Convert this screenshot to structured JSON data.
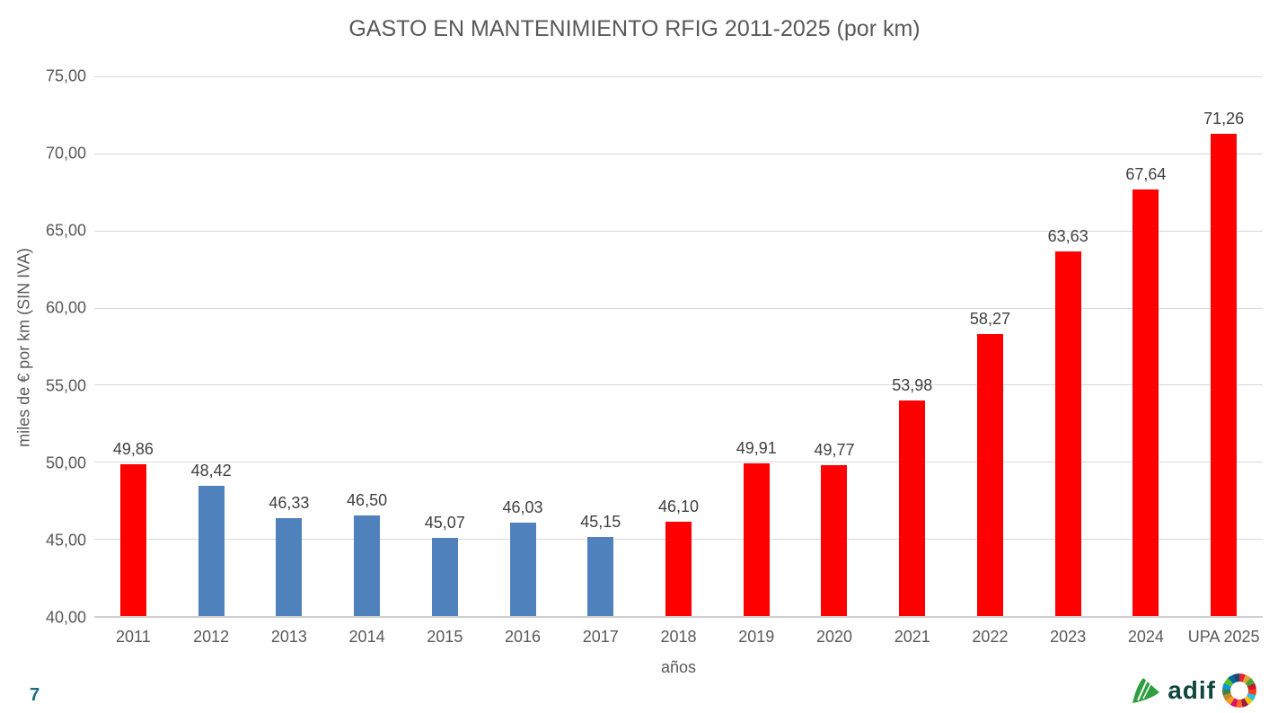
{
  "chart_data": {
    "type": "bar",
    "title": "GASTO EN MANTENIMIENTO RFIG 2011-2025 (por km)",
    "xlabel": "años",
    "ylabel": "miles de € por km (SIN IVA)",
    "ylim": [
      40,
      75
    ],
    "grid": true,
    "legend_position": "none",
    "categories": [
      "2011",
      "2012",
      "2013",
      "2014",
      "2015",
      "2016",
      "2017",
      "2018",
      "2019",
      "2020",
      "2021",
      "2022",
      "2023",
      "2024",
      "UPA 2025"
    ],
    "values": [
      49.86,
      48.42,
      46.33,
      46.5,
      45.07,
      46.03,
      45.15,
      46.1,
      49.91,
      49.77,
      53.98,
      58.27,
      63.63,
      67.64,
      71.26
    ],
    "value_labels": [
      "49,86",
      "48,42",
      "46,33",
      "46,50",
      "45,07",
      "46,03",
      "45,15",
      "46,10",
      "49,91",
      "49,77",
      "53,98",
      "58,27",
      "63,63",
      "67,64",
      "71,26"
    ],
    "point_colors": [
      "red",
      "blue",
      "blue",
      "blue",
      "blue",
      "blue",
      "blue",
      "red",
      "red",
      "red",
      "red",
      "red",
      "red",
      "red",
      "red"
    ],
    "colors": {
      "red": "#FE0000",
      "blue": "#4F81BD"
    },
    "y_ticks": [
      {
        "value": 75,
        "label": "75,00"
      },
      {
        "value": 70,
        "label": "70,00"
      },
      {
        "value": 65,
        "label": "65,00"
      },
      {
        "value": 60,
        "label": "60,00"
      },
      {
        "value": 55,
        "label": "55,00"
      },
      {
        "value": 50,
        "label": "50,00"
      },
      {
        "value": 45,
        "label": "45,00"
      },
      {
        "value": 40,
        "label": "40,00"
      }
    ]
  },
  "footer": {
    "page_number": "7",
    "logo_text": "adif"
  }
}
